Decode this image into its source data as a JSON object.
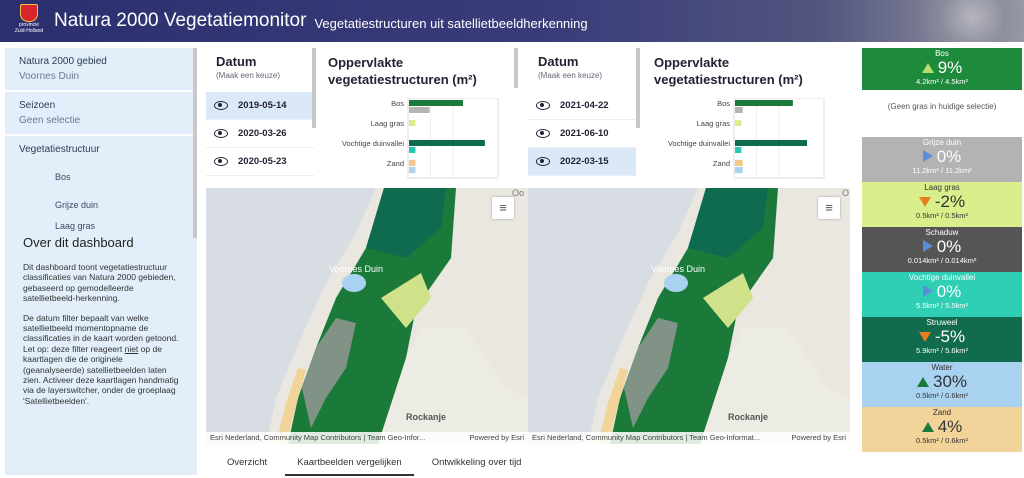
{
  "header": {
    "logo_text": "provincie Zuid-Holland",
    "title": "Natura 2000 Vegetatiemonitor",
    "subtitle": "Vegetatiestructuren uit satellietbeeldherkenning"
  },
  "sidebar": {
    "filters": [
      {
        "label": "Natura 2000 gebied",
        "value": "Voornes Duin"
      },
      {
        "label": "Seizoen",
        "value": "Geen selectie"
      },
      {
        "label": "Vegetatiestructuur",
        "value": ""
      }
    ],
    "veg_items": [
      "Bos",
      "Grijze duin",
      "Laag gras"
    ],
    "about_title": "Over dit dashboard",
    "about_p1": "Dit dashboard toont vegetatiestructuur classificaties van Natura 2000 gebieden, gebaseerd op gemodelleerde satellietbeeld-herkenning.",
    "about_p2a": "De datum filter bepaalt van welke satellietbeeld momentopname de classificaties in de kaart worden getoond. Let op: deze filter reageert ",
    "about_p2b": "niet",
    "about_p2c": " op de kaartlagen die de originele (geanalyseerde) satellietbeelden laten zien. Activeer deze kaartlagen handmatig via de layerswitcher, onder de groeplaag 'Satellietbeelden'."
  },
  "left_dates": {
    "title": "Datum",
    "hint": "(Maak een keuze)",
    "items": [
      "2019-05-14",
      "2020-03-26",
      "2020-05-23"
    ]
  },
  "right_dates": {
    "title": "Datum",
    "hint": "(Maak een keuze)",
    "items": [
      "2021-04-22",
      "2021-06-10",
      "2022-03-15"
    ]
  },
  "chart_title": "Oppervlakte vegetatiestructuren (m²)",
  "chart_data": [
    {
      "type": "bar",
      "title": "Oppervlakte vegetatiestructuren (m²)",
      "categories": [
        "Bos",
        "Laag gras",
        "Vochtige duinvallei",
        "Zand"
      ],
      "bars": [
        {
          "category": "Bos",
          "segments": [
            {
              "value": 4.2,
              "color": "#1b7a3a"
            },
            {
              "value": 1.6,
              "color": "#b5b5b5"
            }
          ]
        },
        {
          "category": "Laag gras",
          "segments": [
            {
              "value": 0.5,
              "color": "#d9ef8b"
            }
          ]
        },
        {
          "category": "Vochtige duinvallei",
          "segments": [
            {
              "value": 5.9,
              "color": "#0f6b4f"
            },
            {
              "value": 0.5,
              "color": "#28c8b0"
            }
          ]
        },
        {
          "category": "Zand",
          "segments": [
            {
              "value": 0.5,
              "color": "#f2c98a"
            },
            {
              "value": 0.5,
              "color": "#a9d2f0"
            }
          ]
        }
      ]
    },
    {
      "type": "bar",
      "title": "Oppervlakte vegetatiestructuren (m²)",
      "categories": [
        "Bos",
        "Laag gras",
        "Vochtige duinvallei",
        "Zand"
      ],
      "bars": [
        {
          "category": "Bos",
          "segments": [
            {
              "value": 4.5,
              "color": "#1b7a3a"
            },
            {
              "value": 0.6,
              "color": "#b5b5b5"
            }
          ]
        },
        {
          "category": "Laag gras",
          "segments": [
            {
              "value": 0.5,
              "color": "#d9ef8b"
            }
          ]
        },
        {
          "category": "Vochtige duinvallei",
          "segments": [
            {
              "value": 5.6,
              "color": "#0f6b4f"
            },
            {
              "value": 0.5,
              "color": "#28c8b0"
            }
          ]
        },
        {
          "category": "Zand",
          "segments": [
            {
              "value": 0.6,
              "color": "#f2c98a"
            },
            {
              "value": 0.6,
              "color": "#a9d2f0"
            }
          ]
        }
      ]
    }
  ],
  "maps": {
    "label_voornes": "Voornes Duin",
    "label_rockanje": "Rockanje",
    "label_oo": "Oo",
    "label_o": "O",
    "attribution_left": "Esri Nederland, Community Map Contributors | Team Geo-Infor...",
    "attribution_right": "Esri Nederland, Community Map Contributors | Team Geo-Informat...",
    "powered": "Powered by Esri"
  },
  "indicators": [
    {
      "name": "Bos",
      "value": "9%",
      "range": "4.2km² / 4.5km²",
      "trend": "up",
      "bg": "#1e8a3c"
    },
    {
      "name": "Grijze duin",
      "value": "0%",
      "range": "11.2km² / 11.2km²",
      "trend": "flat",
      "bg": "#b3b3b3"
    },
    {
      "name": "Laag gras",
      "value": "-2%",
      "range": "0.5km² / 0.5km²",
      "trend": "down",
      "bg": "#d9ef8b"
    },
    {
      "name": "Schaduw",
      "value": "0%",
      "range": "0.014km² / 0.014km²",
      "trend": "flat",
      "bg": "#555555"
    },
    {
      "name": "Vochtige duinvallei",
      "value": "0%",
      "range": "5.5km² / 5.5km²",
      "trend": "flat",
      "bg": "#2fcfb5"
    },
    {
      "name": "Struweel",
      "value": "-5%",
      "range": "5.9km² / 5.6km²",
      "trend": "down",
      "bg": "#116b4e"
    },
    {
      "name": "Water",
      "value": "30%",
      "range": "0.5km² / 0.6km²",
      "trend": "up",
      "bg": "#a9d2f0"
    },
    {
      "name": "Zand",
      "value": "4%",
      "range": "0.5km² / 0.6km²",
      "trend": "up",
      "bg": "#f2d39a"
    }
  ],
  "no_gras": "(Geen gras in huidige selectie)",
  "tabs": [
    "Overzicht",
    "Kaartbeelden vergelijken",
    "Ontwikkeling over tijd"
  ]
}
